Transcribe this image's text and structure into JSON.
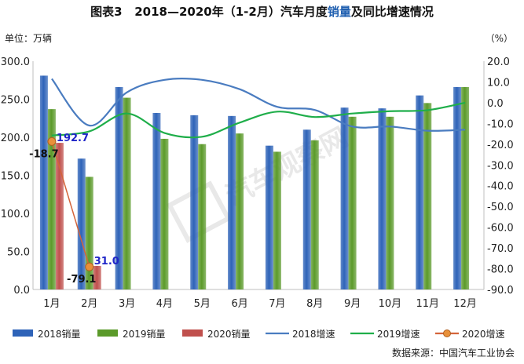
{
  "title": {
    "prefix": "图表3",
    "main": "2018—2020年（1-2月）汽车月度",
    "accent": "销量",
    "suffix": "及同比增速情况"
  },
  "unit_left": "单位：万辆",
  "unit_right": "（%）",
  "source": "数据来源：中国汽车工业协会",
  "colors": {
    "bar2018": "#2e63b8",
    "bar2019": "#5b9a2a",
    "bar2020": "#c0504d",
    "line2018": "#4a7cc0",
    "line2019": "#1fae4a",
    "line2020": "#d4643a",
    "marker2020": "#e8903a",
    "label2020": "#1f25c8"
  },
  "chart_data": {
    "type": "bar",
    "categories": [
      "1月",
      "2月",
      "3月",
      "4月",
      "5月",
      "6月",
      "7月",
      "8月",
      "9月",
      "10月",
      "11月",
      "12月"
    ],
    "y_left": {
      "ylim": [
        0,
        300
      ],
      "ticks": [
        "0.0",
        "50.0",
        "100.0",
        "150.0",
        "200.0",
        "250.0",
        "300.0"
      ]
    },
    "y_right": {
      "ylim": [
        -90,
        20
      ],
      "ticks": [
        "20.0",
        "10.0",
        "0.0",
        "-10.0",
        "-20.0",
        "-30.0",
        "-40.0",
        "-50.0",
        "-60.0",
        "-70.0",
        "-80.0",
        "-90.0"
      ]
    },
    "series": [
      {
        "name": "2018销量",
        "type": "bar",
        "values": [
          281,
          172,
          266,
          232,
          229,
          228,
          189,
          210,
          239,
          238,
          255,
          266
        ]
      },
      {
        "name": "2019销量",
        "type": "bar",
        "values": [
          237,
          148,
          252,
          198,
          191,
          205,
          181,
          196,
          227,
          227,
          245,
          266
        ]
      },
      {
        "name": "2020销量",
        "type": "bar",
        "values": [
          192.7,
          31.0,
          null,
          null,
          null,
          null,
          null,
          null,
          null,
          null,
          null,
          null
        ]
      },
      {
        "name": "2018增速",
        "type": "line",
        "axis": "right",
        "values": [
          11.5,
          -11,
          5,
          11,
          11,
          6.5,
          -2,
          -3.5,
          -11.5,
          -11.5,
          -13.5,
          -13
        ]
      },
      {
        "name": "2019增速",
        "type": "line",
        "axis": "right",
        "values": [
          -15.8,
          -13.8,
          -5.2,
          -14.6,
          -16.4,
          -9.6,
          -4.3,
          -6.9,
          -5.2,
          -4.1,
          -3.6,
          0
        ]
      },
      {
        "name": "2020增速",
        "type": "line",
        "axis": "right",
        "values": [
          -18.7,
          -79.1,
          null,
          null,
          null,
          null,
          null,
          null,
          null,
          null,
          null,
          null
        ]
      }
    ],
    "data_labels": {
      "bar2020": [
        "192.7",
        "31.0"
      ],
      "growth2020": [
        "-18.7",
        "-79.1"
      ]
    },
    "legend": [
      "2018销量",
      "2019销量",
      "2020销量",
      "2018增速",
      "2019增速",
      "2020增速"
    ]
  }
}
